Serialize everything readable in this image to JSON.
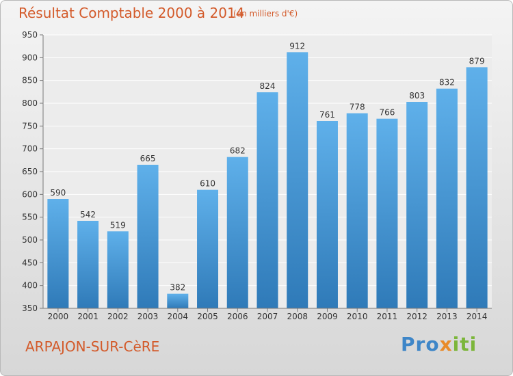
{
  "header": {
    "title": "Résultat Comptable 2000 à 2014",
    "subtitle": "(en milliers d'€)"
  },
  "footer": {
    "city": "ARPAJON-SUR-CèRE",
    "logo": {
      "part1": "Pro",
      "part2": "x",
      "part3": "iti"
    }
  },
  "colors": {
    "title": "#d35a2a",
    "bar_top": "#5fb0ea",
    "bar_bottom": "#2f7ab8",
    "plot_bg": "#ececec",
    "grid": "#ffffff"
  },
  "chart_data": {
    "type": "bar",
    "title": "Résultat Comptable 2000 à 2014",
    "subtitle": "(en milliers d'€)",
    "categories": [
      "2000",
      "2001",
      "2002",
      "2003",
      "2004",
      "2005",
      "2006",
      "2007",
      "2008",
      "2009",
      "2010",
      "2011",
      "2012",
      "2013",
      "2014"
    ],
    "values": [
      590,
      542,
      519,
      665,
      382,
      610,
      682,
      824,
      912,
      761,
      778,
      766,
      803,
      832,
      879
    ],
    "ylim": [
      350,
      950
    ],
    "yticks": [
      350,
      400,
      450,
      500,
      550,
      600,
      650,
      700,
      750,
      800,
      850,
      900,
      950
    ],
    "grid": true,
    "data_labels": true
  }
}
